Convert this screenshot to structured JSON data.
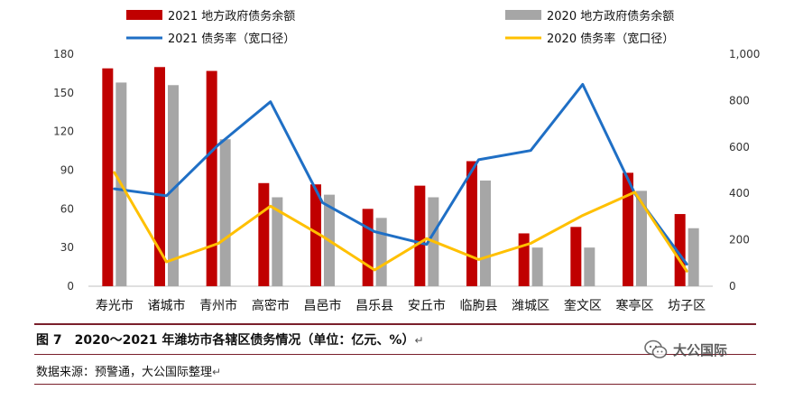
{
  "chart_data": {
    "type": "bar+line",
    "categories": [
      "寿光市",
      "诸城市",
      "青州市",
      "高密市",
      "昌邑市",
      "昌乐县",
      "安丘市",
      "临朐县",
      "潍城区",
      "奎文区",
      "寒亭区",
      "坊子区"
    ],
    "bar_series": [
      {
        "name": "2021 地方政府债务余额",
        "color": "#c00000",
        "axis": "left",
        "values": [
          169,
          170,
          167,
          80,
          79,
          60,
          78,
          97,
          41,
          46,
          88,
          56
        ]
      },
      {
        "name": "2020 地方政府债务余额",
        "color": "#a6a6a6",
        "axis": "left",
        "values": [
          158,
          156,
          114,
          69,
          71,
          53,
          69,
          82,
          30,
          30,
          74,
          45
        ]
      }
    ],
    "line_series": [
      {
        "name": "2021 债务率（宽口径）",
        "color": "#1f6fc5",
        "axis": "right",
        "values": [
          420,
          390,
          610,
          795,
          360,
          235,
          180,
          545,
          585,
          870,
          400,
          95
        ]
      },
      {
        "name": "2020 债务率（宽口径）",
        "color": "#ffc000",
        "axis": "right",
        "values": [
          490,
          105,
          185,
          345,
          215,
          70,
          205,
          115,
          185,
          305,
          405,
          65
        ]
      }
    ],
    "left_axis": {
      "min": 0,
      "max": 180,
      "ticks": [
        "0",
        "30",
        "60",
        "90",
        "120",
        "150",
        "180"
      ]
    },
    "right_axis": {
      "min": 0,
      "max": 1000,
      "ticks": [
        "0",
        "200",
        "400",
        "600",
        "800",
        "1,000"
      ]
    },
    "legend_position": "top"
  },
  "caption": {
    "figure_title": "图 7　2020～2021 年潍坊市各辖区债务情况（单位：亿元、%）",
    "source": "数据来源：预警通，大公国际整理",
    "return_mark": "↵"
  },
  "watermark": {
    "text": "大公国际"
  }
}
